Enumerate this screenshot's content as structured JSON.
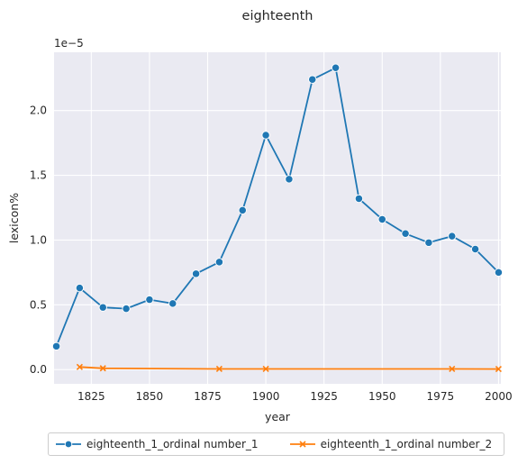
{
  "chart_data": {
    "type": "line",
    "title": "eighteenth",
    "xlabel": "year",
    "ylabel": "lexicon%",
    "y_offset_text": "1e−5",
    "xlim": [
      1809,
      2001
    ],
    "ylim": [
      -0.11,
      2.45
    ],
    "y_scale_note": "values in units of 1e-5",
    "x_ticks": [
      1825,
      1850,
      1875,
      1900,
      1925,
      1950,
      1975,
      2000
    ],
    "y_ticks": [
      0.0,
      0.5,
      1.0,
      1.5,
      2.0
    ],
    "grid": true,
    "background": "#eaeaf2",
    "legend_position": "bottom",
    "series": [
      {
        "name": "eighteenth_1_ordinal number_1",
        "color": "#1f77b4",
        "marker": "circle",
        "points": [
          [
            1810,
            0.18
          ],
          [
            1820,
            0.63
          ],
          [
            1830,
            0.48
          ],
          [
            1840,
            0.47
          ],
          [
            1850,
            0.54
          ],
          [
            1860,
            0.51
          ],
          [
            1870,
            0.74
          ],
          [
            1880,
            0.83
          ],
          [
            1890,
            1.23
          ],
          [
            1900,
            1.81
          ],
          [
            1910,
            1.47
          ],
          [
            1920,
            2.24
          ],
          [
            1930,
            2.33
          ],
          [
            1940,
            1.32
          ],
          [
            1950,
            1.16
          ],
          [
            1960,
            1.05
          ],
          [
            1970,
            0.98
          ],
          [
            1980,
            1.03
          ],
          [
            1990,
            0.93
          ],
          [
            2000,
            0.75
          ]
        ]
      },
      {
        "name": "eighteenth_1_ordinal number_2",
        "color": "#ff7f0e",
        "marker": "x",
        "points": [
          [
            1820,
            0.02
          ],
          [
            1830,
            0.01
          ],
          [
            1880,
            0.005
          ],
          [
            1900,
            0.005
          ],
          [
            1980,
            0.005
          ],
          [
            2000,
            0.004
          ]
        ]
      }
    ]
  }
}
